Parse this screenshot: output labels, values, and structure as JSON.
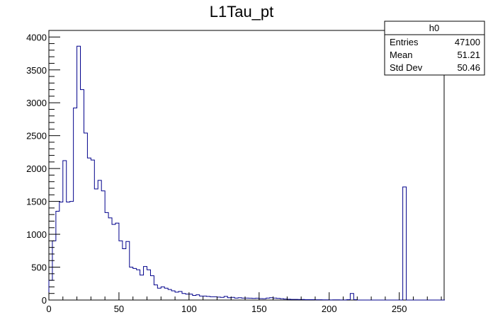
{
  "chart_data": {
    "type": "bar",
    "style": "step-histogram",
    "title": "L1Tau_pt",
    "xlabel": "",
    "ylabel": "",
    "xlim": [
      0,
      282
    ],
    "ylim": [
      0,
      4100
    ],
    "x_ticks": [
      0,
      50,
      100,
      150,
      200,
      250
    ],
    "y_ticks": [
      0,
      500,
      1000,
      1500,
      2000,
      2500,
      3000,
      3500,
      4000
    ],
    "bin_width": 2.5,
    "bin_edges_start": 0,
    "values": [
      300,
      900,
      1350,
      1490,
      2120,
      1490,
      1500,
      2920,
      3860,
      3200,
      2540,
      2160,
      2130,
      1690,
      1820,
      1660,
      1330,
      1250,
      1150,
      1170,
      900,
      780,
      890,
      500,
      480,
      460,
      380,
      510,
      460,
      370,
      230,
      180,
      200,
      180,
      160,
      140,
      120,
      130,
      100,
      90,
      90,
      70,
      80,
      60,
      60,
      55,
      50,
      50,
      45,
      40,
      55,
      35,
      40,
      30,
      35,
      30,
      30,
      28,
      25,
      28,
      22,
      20,
      30,
      35,
      30,
      25,
      20,
      15,
      12,
      10,
      10,
      8,
      8,
      6,
      5,
      5,
      4,
      4,
      3,
      3,
      2,
      3,
      3,
      2,
      2,
      5,
      100,
      5,
      0,
      0,
      0,
      0,
      0,
      0,
      0,
      0,
      0,
      0,
      0,
      0,
      0,
      1720,
      0,
      0,
      0,
      0,
      0,
      0,
      0,
      0,
      0,
      0,
      0
    ],
    "legend": "top-right",
    "stats_box": {
      "title": "h0",
      "rows": [
        {
          "label": "Entries",
          "value": "47100"
        },
        {
          "label": "Mean",
          "value": "51.21"
        },
        {
          "label": "Std Dev",
          "value": "50.46"
        }
      ]
    },
    "line_color": "#00008b",
    "axis_color": "#000000"
  }
}
